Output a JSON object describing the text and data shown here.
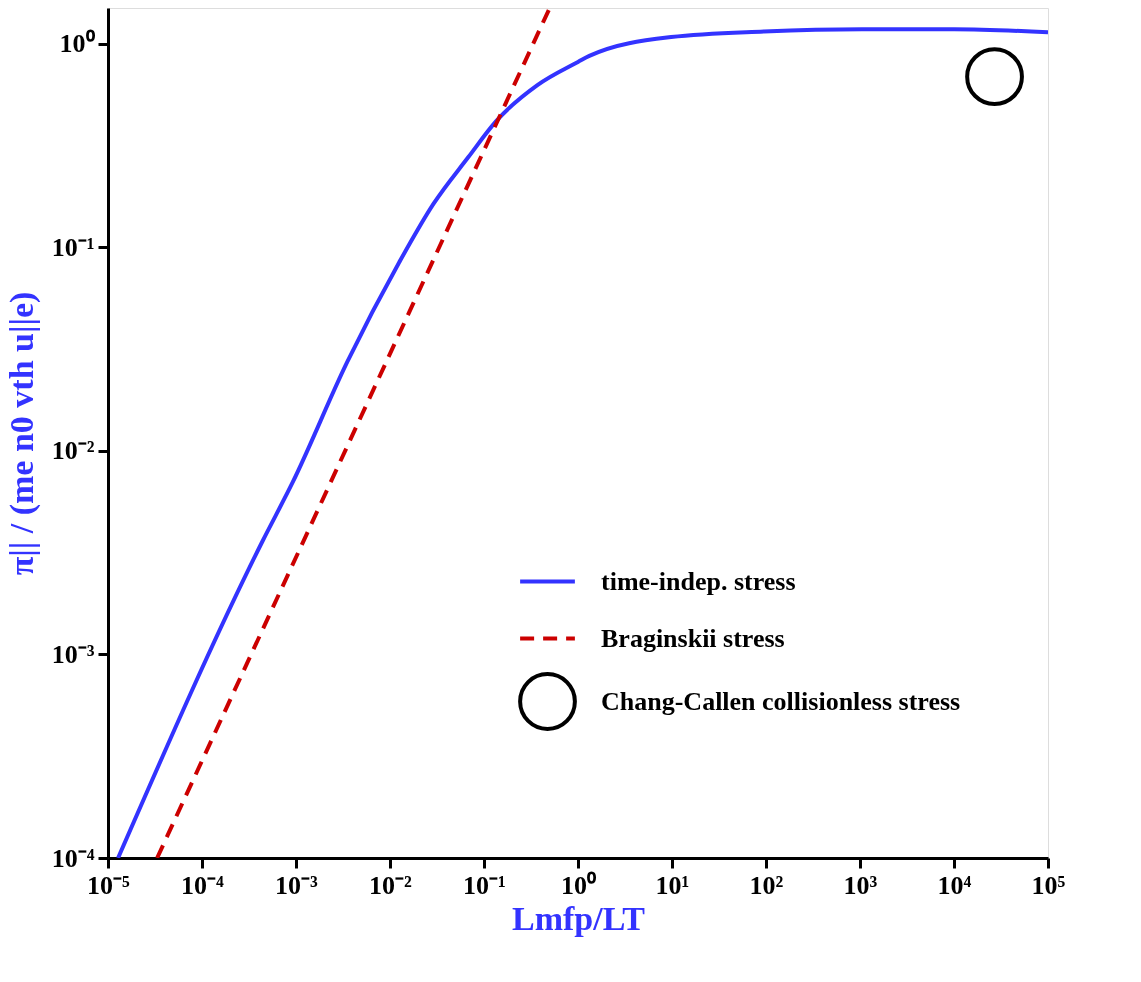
{
  "chart_data": {
    "type": "line",
    "xlabel": "Lmfp/LT",
    "ylabel": "π|| / (me n0 vth u||e)",
    "log": "xy",
    "grid": false,
    "legend": "right",
    "xlim": [
      1e-05,
      100000.0
    ],
    "ylim": [
      0.0001,
      1.5
    ],
    "xticks": [
      {
        "value": 1e-05,
        "label": "10⁻⁵"
      },
      {
        "value": 0.0001,
        "label": "10⁻⁴"
      },
      {
        "value": 0.001,
        "label": "10⁻³"
      },
      {
        "value": 0.01,
        "label": "10⁻²"
      },
      {
        "value": 0.1,
        "label": "10⁻¹"
      },
      {
        "value": 1,
        "label": "10⁰"
      },
      {
        "value": 10,
        "label": "10¹"
      },
      {
        "value": 100,
        "label": "10²"
      },
      {
        "value": 1000,
        "label": "10³"
      },
      {
        "value": 10000,
        "label": "10⁴"
      },
      {
        "value": 100000,
        "label": "10⁵"
      }
    ],
    "yticks": [
      {
        "value": 0.0001,
        "label": "10⁻⁴"
      },
      {
        "value": 0.001,
        "label": "10⁻³"
      },
      {
        "value": 0.01,
        "label": "10⁻²"
      },
      {
        "value": 0.1,
        "label": "10⁻¹"
      },
      {
        "value": 1,
        "label": "10⁰"
      }
    ],
    "series": [
      {
        "name": "time-indep. stress",
        "type": "line",
        "line_style": "solid",
        "color": "#3333ff",
        "x": [
          1.28e-05,
          0.00044,
          0.00092,
          0.0035,
          0.0125,
          0.0291,
          0.0679,
          0.134,
          0.37,
          1.0,
          1.32,
          9.8,
          95,
          1050,
          10000,
          100000
        ],
        "values": [
          0.0001,
          0.0036,
          0.007,
          0.0273,
          0.0843,
          0.164,
          0.277,
          0.416,
          0.627,
          0.815,
          0.873,
          1.08,
          1.15,
          1.18,
          1.18,
          1.14
        ]
      },
      {
        "name": "Braginskii stress",
        "type": "line",
        "line_style": "dashed",
        "color": "#cc0000",
        "x": [
          3.33e-05,
          0.5
        ],
        "values": [
          0.0001,
          1.5
        ]
      },
      {
        "name": "Chang-Callen collisionless stress",
        "type": "scatter",
        "marker": "circle",
        "color": "#000000",
        "x": [
          27000
        ],
        "values": [
          0.69
        ]
      }
    ]
  }
}
